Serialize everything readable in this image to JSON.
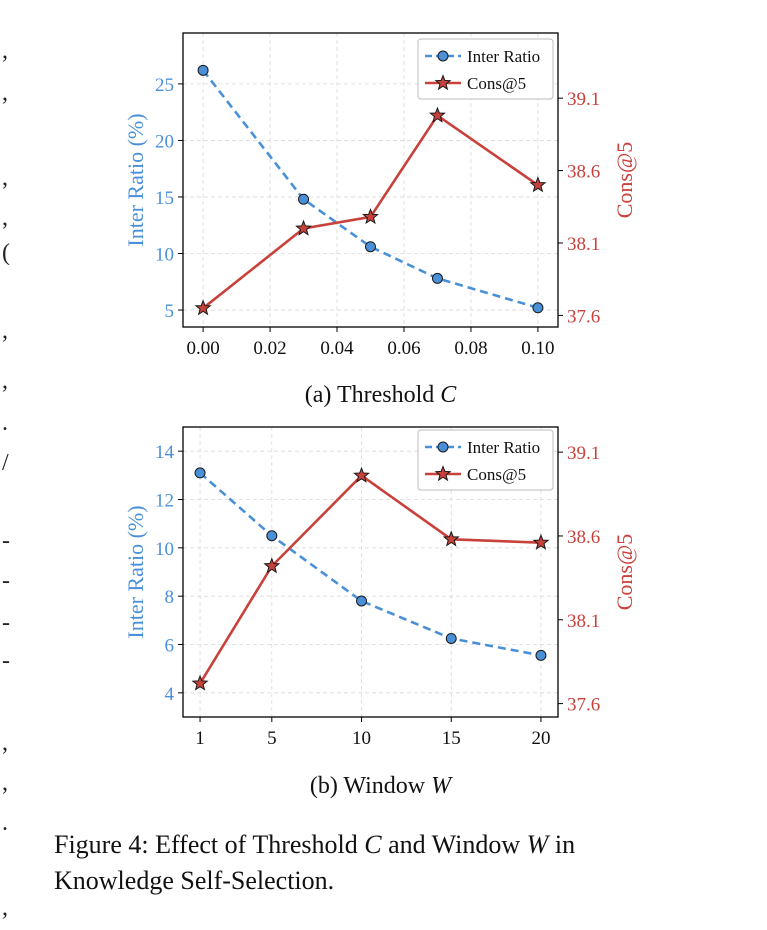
{
  "chart_data": [
    {
      "type": "line",
      "subcaption_prefix": "(a) Threshold ",
      "subcaption_var": "C",
      "x": [
        0.0,
        0.03,
        0.05,
        0.07,
        0.1
      ],
      "xticks": [
        "0.00",
        "0.02",
        "0.04",
        "0.06",
        "0.08",
        "0.10"
      ],
      "xtick_values": [
        0.0,
        0.02,
        0.04,
        0.06,
        0.08,
        0.1
      ],
      "xlim": [
        -0.006,
        0.106
      ],
      "ylabel_left": "Inter Ratio (%)",
      "ylim_left": [
        3.5,
        29.5
      ],
      "yticks_left": [
        5,
        10,
        15,
        20,
        25
      ],
      "ylabel_right": "Cons@5",
      "ylim_right": [
        37.52,
        39.55
      ],
      "yticks_right": [
        37.6,
        38.1,
        38.6,
        39.1
      ],
      "series": [
        {
          "name": "Inter Ratio",
          "axis": "left",
          "style": "dashed",
          "marker": "circle",
          "color": "#4a90d9",
          "values": [
            26.2,
            14.8,
            10.6,
            7.8,
            5.2
          ]
        },
        {
          "name": "Cons@5",
          "axis": "right",
          "style": "solid",
          "marker": "star",
          "color": "#c8413b",
          "values": [
            37.65,
            38.2,
            38.28,
            38.98,
            38.5
          ]
        }
      ],
      "legend": "top-right",
      "grid": true
    },
    {
      "type": "line",
      "subcaption_prefix": "(b) Window ",
      "subcaption_var": "W",
      "x": [
        1,
        5,
        10,
        15,
        20
      ],
      "xticks": [
        "1",
        "5",
        "10",
        "15",
        "20"
      ],
      "xtick_values": [
        1,
        5,
        10,
        15,
        20
      ],
      "xlim": [
        0.05,
        20.95
      ],
      "ylabel_left": "Inter Ratio (%)",
      "ylim_left": [
        3.0,
        15.0
      ],
      "yticks_left": [
        4,
        6,
        8,
        10,
        12,
        14
      ],
      "ylabel_right": "Cons@5",
      "ylim_right": [
        37.52,
        39.25
      ],
      "yticks_right": [
        37.6,
        38.1,
        38.6,
        39.1
      ],
      "series": [
        {
          "name": "Inter Ratio",
          "axis": "left",
          "style": "dashed",
          "marker": "circle",
          "color": "#4a90d9",
          "values": [
            13.1,
            10.5,
            7.8,
            6.25,
            5.55
          ]
        },
        {
          "name": "Cons@5",
          "axis": "right",
          "style": "solid",
          "marker": "star",
          "color": "#c8413b",
          "values": [
            37.72,
            38.42,
            38.96,
            38.58,
            38.56
          ]
        }
      ],
      "legend": "top-right",
      "grid": true
    }
  ],
  "caption": {
    "line1_a": "Figure 4:  Effect of Threshold ",
    "line1_var1": "C",
    "line1_b": " and Window ",
    "line1_var2": "W",
    "line1_c": " in",
    "line2": "Knowledge Self-Selection."
  },
  "margin_marks": [
    ",",
    ",",
    ",",
    ",",
    "(",
    ",",
    ",",
    ".",
    "/",
    "-",
    "-",
    "-",
    "-",
    ",",
    ",",
    ".",
    ","
  ]
}
